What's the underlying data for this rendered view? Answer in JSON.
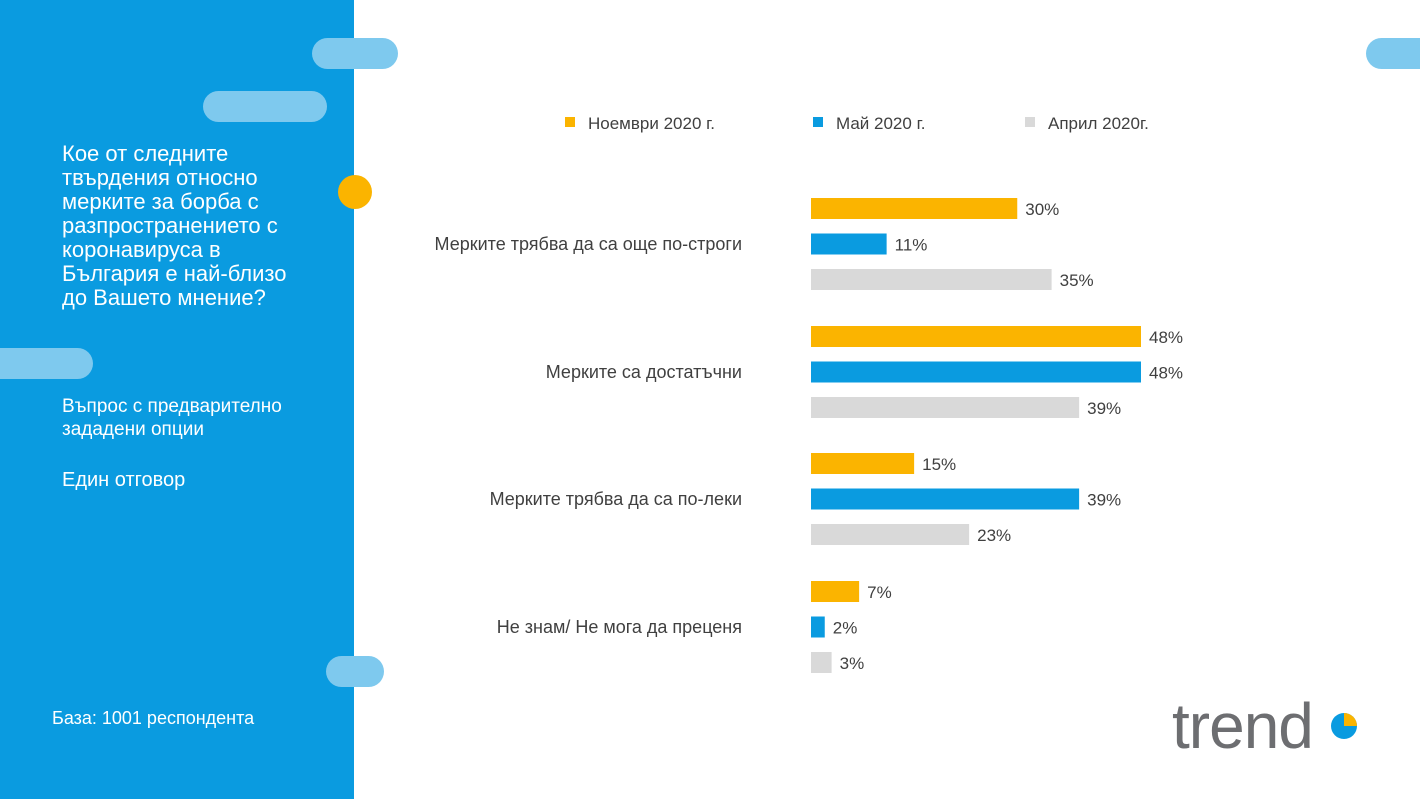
{
  "sidebar": {
    "question": "Кое от следните твърдения относно мерките за борба с разпространението с коронавируса в България е най-близо до Вашето мнение?",
    "question_type": "Въпрос с предварително зададени опции",
    "answer_type": "Един отговор",
    "base": "База: 1001 респондента"
  },
  "logo": {
    "text": "trend"
  },
  "colors": {
    "sidebar": "#0a9be0",
    "nov": "#fbb400",
    "may": "#0a9be0",
    "apr": "#d9d9d9",
    "label_text": "#404040"
  },
  "chart_data": {
    "type": "bar",
    "orientation": "horizontal",
    "categories": [
      "Мерките трябва да са още по-строги",
      "Мерките са достатъчни",
      "Мерките трябва да са по-леки",
      "Не знам/ Не мога да преценя"
    ],
    "series": [
      {
        "name": "Ноември 2020 г.",
        "values": [
          30,
          48,
          15,
          7
        ],
        "labels": [
          "30%",
          "48%",
          "15%",
          "7%"
        ]
      },
      {
        "name": "Май 2020 г.",
        "values": [
          11,
          48,
          39,
          2
        ],
        "labels": [
          "11%",
          "48%",
          "39%",
          "2%"
        ]
      },
      {
        "name": "Април 2020г.",
        "values": [
          35,
          39,
          23,
          3
        ],
        "labels": [
          "35%",
          "39%",
          "23%",
          "3%"
        ]
      }
    ],
    "unit": "%",
    "legend_position": "top",
    "grid": false
  }
}
